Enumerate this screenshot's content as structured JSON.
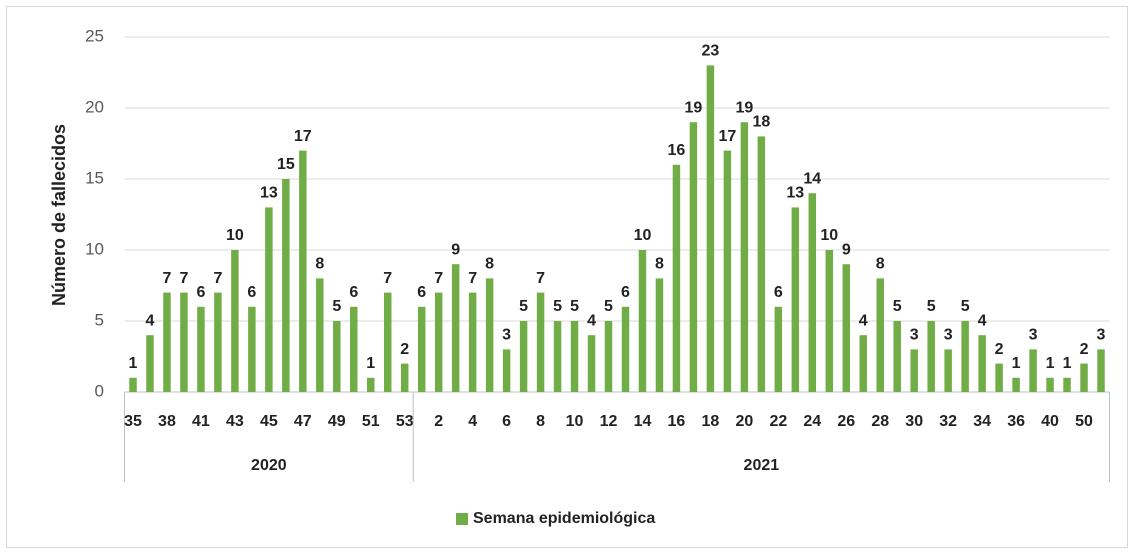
{
  "chart_data": {
    "type": "bar",
    "y_label": "Número de fallecidos",
    "ylim": [
      0,
      25
    ],
    "yticks": [
      0,
      5,
      10,
      15,
      20,
      25
    ],
    "grid": true,
    "legend": "bottom",
    "groups": [
      {
        "label": "2020",
        "categories": [
          "35",
          null,
          "38",
          null,
          "41",
          null,
          "43",
          null,
          "45",
          null,
          "47",
          null,
          "49",
          null,
          "51",
          null,
          "53"
        ]
      },
      {
        "label": "2021",
        "categories": [
          null,
          "2",
          null,
          "4",
          null,
          "6",
          null,
          "8",
          null,
          "10",
          null,
          "12",
          null,
          "14",
          null,
          "16",
          null,
          "18",
          null,
          "20",
          null,
          "22",
          null,
          "24",
          null,
          "26",
          null,
          "28",
          null,
          "30",
          null,
          "32",
          null,
          "34",
          null,
          "36",
          null,
          "40",
          null,
          "50",
          null
        ]
      }
    ],
    "series": [
      {
        "name": "Semana epidemiológica",
        "color": "#70ad47",
        "values": [
          1,
          4,
          7,
          7,
          6,
          7,
          10,
          6,
          13,
          15,
          17,
          8,
          5,
          6,
          1,
          7,
          2,
          6,
          7,
          9,
          7,
          8,
          3,
          5,
          7,
          5,
          5,
          4,
          5,
          6,
          10,
          8,
          16,
          19,
          23,
          17,
          19,
          18,
          6,
          13,
          14,
          10,
          9,
          4,
          8,
          5,
          3,
          5,
          3,
          5,
          4,
          2,
          1,
          3,
          1,
          1,
          2,
          3
        ]
      }
    ]
  }
}
